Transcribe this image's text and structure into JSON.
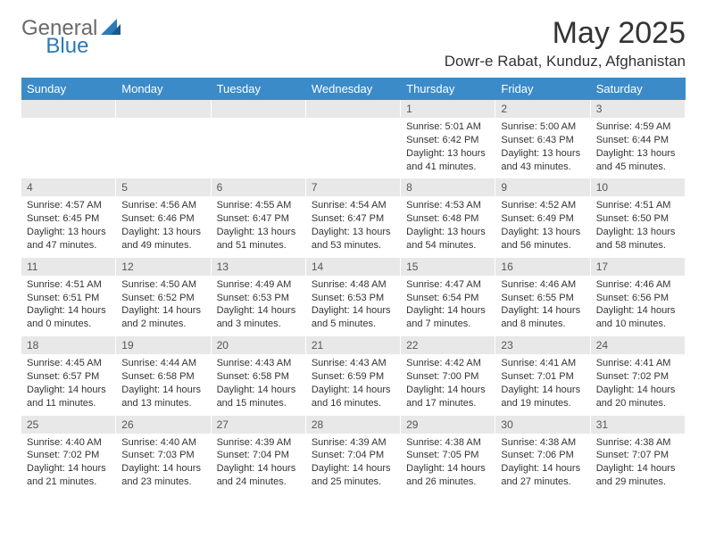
{
  "logo": {
    "part1": "General",
    "part2": "Blue"
  },
  "title": "May 2025",
  "location": "Dowr-e Rabat, Kunduz, Afghanistan",
  "colors": {
    "header_bg": "#3b8bc8",
    "header_fg": "#ffffff",
    "date_bg": "#e8e8e8",
    "date_fg": "#555555",
    "text": "#333333",
    "logo_gray": "#6a6a6a",
    "logo_blue": "#2a7ab8"
  },
  "days": [
    "Sunday",
    "Monday",
    "Tuesday",
    "Wednesday",
    "Thursday",
    "Friday",
    "Saturday"
  ],
  "weeks": [
    [
      {
        "date": "",
        "sunrise": "",
        "sunset": "",
        "daylight": ""
      },
      {
        "date": "",
        "sunrise": "",
        "sunset": "",
        "daylight": ""
      },
      {
        "date": "",
        "sunrise": "",
        "sunset": "",
        "daylight": ""
      },
      {
        "date": "",
        "sunrise": "",
        "sunset": "",
        "daylight": ""
      },
      {
        "date": "1",
        "sunrise": "Sunrise: 5:01 AM",
        "sunset": "Sunset: 6:42 PM",
        "daylight": "Daylight: 13 hours and 41 minutes."
      },
      {
        "date": "2",
        "sunrise": "Sunrise: 5:00 AM",
        "sunset": "Sunset: 6:43 PM",
        "daylight": "Daylight: 13 hours and 43 minutes."
      },
      {
        "date": "3",
        "sunrise": "Sunrise: 4:59 AM",
        "sunset": "Sunset: 6:44 PM",
        "daylight": "Daylight: 13 hours and 45 minutes."
      }
    ],
    [
      {
        "date": "4",
        "sunrise": "Sunrise: 4:57 AM",
        "sunset": "Sunset: 6:45 PM",
        "daylight": "Daylight: 13 hours and 47 minutes."
      },
      {
        "date": "5",
        "sunrise": "Sunrise: 4:56 AM",
        "sunset": "Sunset: 6:46 PM",
        "daylight": "Daylight: 13 hours and 49 minutes."
      },
      {
        "date": "6",
        "sunrise": "Sunrise: 4:55 AM",
        "sunset": "Sunset: 6:47 PM",
        "daylight": "Daylight: 13 hours and 51 minutes."
      },
      {
        "date": "7",
        "sunrise": "Sunrise: 4:54 AM",
        "sunset": "Sunset: 6:47 PM",
        "daylight": "Daylight: 13 hours and 53 minutes."
      },
      {
        "date": "8",
        "sunrise": "Sunrise: 4:53 AM",
        "sunset": "Sunset: 6:48 PM",
        "daylight": "Daylight: 13 hours and 54 minutes."
      },
      {
        "date": "9",
        "sunrise": "Sunrise: 4:52 AM",
        "sunset": "Sunset: 6:49 PM",
        "daylight": "Daylight: 13 hours and 56 minutes."
      },
      {
        "date": "10",
        "sunrise": "Sunrise: 4:51 AM",
        "sunset": "Sunset: 6:50 PM",
        "daylight": "Daylight: 13 hours and 58 minutes."
      }
    ],
    [
      {
        "date": "11",
        "sunrise": "Sunrise: 4:51 AM",
        "sunset": "Sunset: 6:51 PM",
        "daylight": "Daylight: 14 hours and 0 minutes."
      },
      {
        "date": "12",
        "sunrise": "Sunrise: 4:50 AM",
        "sunset": "Sunset: 6:52 PM",
        "daylight": "Daylight: 14 hours and 2 minutes."
      },
      {
        "date": "13",
        "sunrise": "Sunrise: 4:49 AM",
        "sunset": "Sunset: 6:53 PM",
        "daylight": "Daylight: 14 hours and 3 minutes."
      },
      {
        "date": "14",
        "sunrise": "Sunrise: 4:48 AM",
        "sunset": "Sunset: 6:53 PM",
        "daylight": "Daylight: 14 hours and 5 minutes."
      },
      {
        "date": "15",
        "sunrise": "Sunrise: 4:47 AM",
        "sunset": "Sunset: 6:54 PM",
        "daylight": "Daylight: 14 hours and 7 minutes."
      },
      {
        "date": "16",
        "sunrise": "Sunrise: 4:46 AM",
        "sunset": "Sunset: 6:55 PM",
        "daylight": "Daylight: 14 hours and 8 minutes."
      },
      {
        "date": "17",
        "sunrise": "Sunrise: 4:46 AM",
        "sunset": "Sunset: 6:56 PM",
        "daylight": "Daylight: 14 hours and 10 minutes."
      }
    ],
    [
      {
        "date": "18",
        "sunrise": "Sunrise: 4:45 AM",
        "sunset": "Sunset: 6:57 PM",
        "daylight": "Daylight: 14 hours and 11 minutes."
      },
      {
        "date": "19",
        "sunrise": "Sunrise: 4:44 AM",
        "sunset": "Sunset: 6:58 PM",
        "daylight": "Daylight: 14 hours and 13 minutes."
      },
      {
        "date": "20",
        "sunrise": "Sunrise: 4:43 AM",
        "sunset": "Sunset: 6:58 PM",
        "daylight": "Daylight: 14 hours and 15 minutes."
      },
      {
        "date": "21",
        "sunrise": "Sunrise: 4:43 AM",
        "sunset": "Sunset: 6:59 PM",
        "daylight": "Daylight: 14 hours and 16 minutes."
      },
      {
        "date": "22",
        "sunrise": "Sunrise: 4:42 AM",
        "sunset": "Sunset: 7:00 PM",
        "daylight": "Daylight: 14 hours and 17 minutes."
      },
      {
        "date": "23",
        "sunrise": "Sunrise: 4:41 AM",
        "sunset": "Sunset: 7:01 PM",
        "daylight": "Daylight: 14 hours and 19 minutes."
      },
      {
        "date": "24",
        "sunrise": "Sunrise: 4:41 AM",
        "sunset": "Sunset: 7:02 PM",
        "daylight": "Daylight: 14 hours and 20 minutes."
      }
    ],
    [
      {
        "date": "25",
        "sunrise": "Sunrise: 4:40 AM",
        "sunset": "Sunset: 7:02 PM",
        "daylight": "Daylight: 14 hours and 21 minutes."
      },
      {
        "date": "26",
        "sunrise": "Sunrise: 4:40 AM",
        "sunset": "Sunset: 7:03 PM",
        "daylight": "Daylight: 14 hours and 23 minutes."
      },
      {
        "date": "27",
        "sunrise": "Sunrise: 4:39 AM",
        "sunset": "Sunset: 7:04 PM",
        "daylight": "Daylight: 14 hours and 24 minutes."
      },
      {
        "date": "28",
        "sunrise": "Sunrise: 4:39 AM",
        "sunset": "Sunset: 7:04 PM",
        "daylight": "Daylight: 14 hours and 25 minutes."
      },
      {
        "date": "29",
        "sunrise": "Sunrise: 4:38 AM",
        "sunset": "Sunset: 7:05 PM",
        "daylight": "Daylight: 14 hours and 26 minutes."
      },
      {
        "date": "30",
        "sunrise": "Sunrise: 4:38 AM",
        "sunset": "Sunset: 7:06 PM",
        "daylight": "Daylight: 14 hours and 27 minutes."
      },
      {
        "date": "31",
        "sunrise": "Sunrise: 4:38 AM",
        "sunset": "Sunset: 7:07 PM",
        "daylight": "Daylight: 14 hours and 29 minutes."
      }
    ]
  ]
}
